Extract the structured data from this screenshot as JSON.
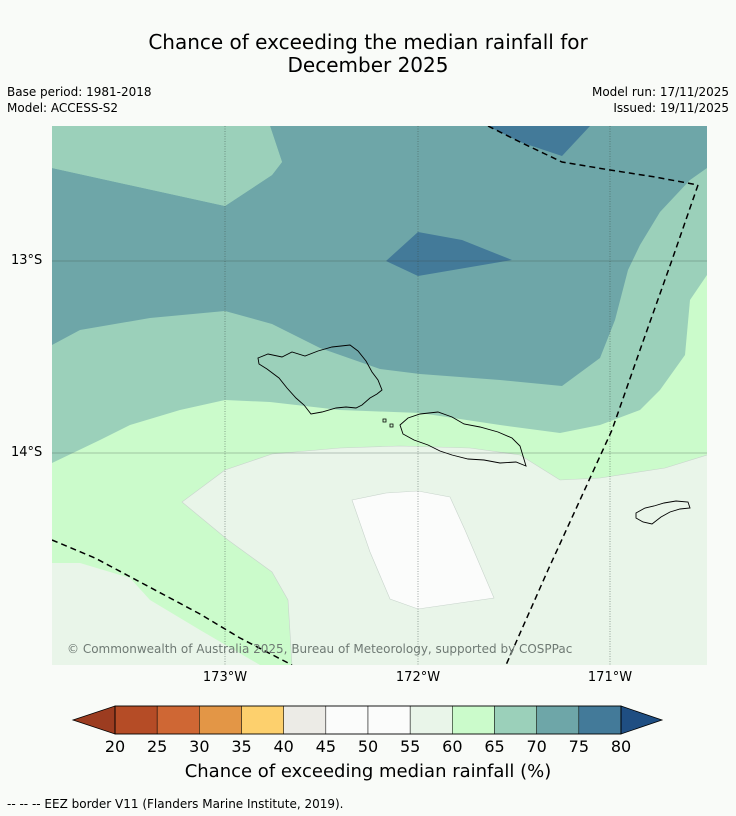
{
  "title_line1": "Chance of exceeding the median rainfall for",
  "title_line2": "December 2025",
  "base_period": "Base period: 1981-2018",
  "model": "Model: ACCESS-S2",
  "model_run": "Model run: 17/11/2025",
  "issued": "Issued: 19/11/2025",
  "lat_labels": [
    "13°S",
    "14°S"
  ],
  "lon_labels": [
    "173°W",
    "172°W",
    "171°W"
  ],
  "copyright": "© Commonwealth of Australia 2025, Bureau of Meteorology, supported by COSPPac",
  "colorbar": {
    "ticks": [
      "20",
      "25",
      "30",
      "35",
      "40",
      "45",
      "50",
      "55",
      "60",
      "65",
      "70",
      "75",
      "80"
    ],
    "colors": [
      "#b54c26",
      "#cf6734",
      "#e39646",
      "#fdd06d",
      "#ecebe6",
      "#fbfcfb",
      "#fbfcfb",
      "#e9f5e9",
      "#cbfbcb",
      "#9bd0ba",
      "#6ea6a8",
      "#437a99"
    ],
    "under_color": "#9c3c20",
    "over_color": "#1f4e82",
    "label": "Chance of exceeding median rainfall (%)"
  },
  "footnote": "--  --  -- EEZ border V11 (Flanders Marine Institute, 2019).",
  "palette": {
    "p75_80": "#437a99",
    "p70_75": "#6ea6a8",
    "p65_70": "#9bd0ba",
    "p60_65": "#cbfbcb",
    "p55_60": "#e9f5e9",
    "p50_55": "#fbfcfb"
  }
}
